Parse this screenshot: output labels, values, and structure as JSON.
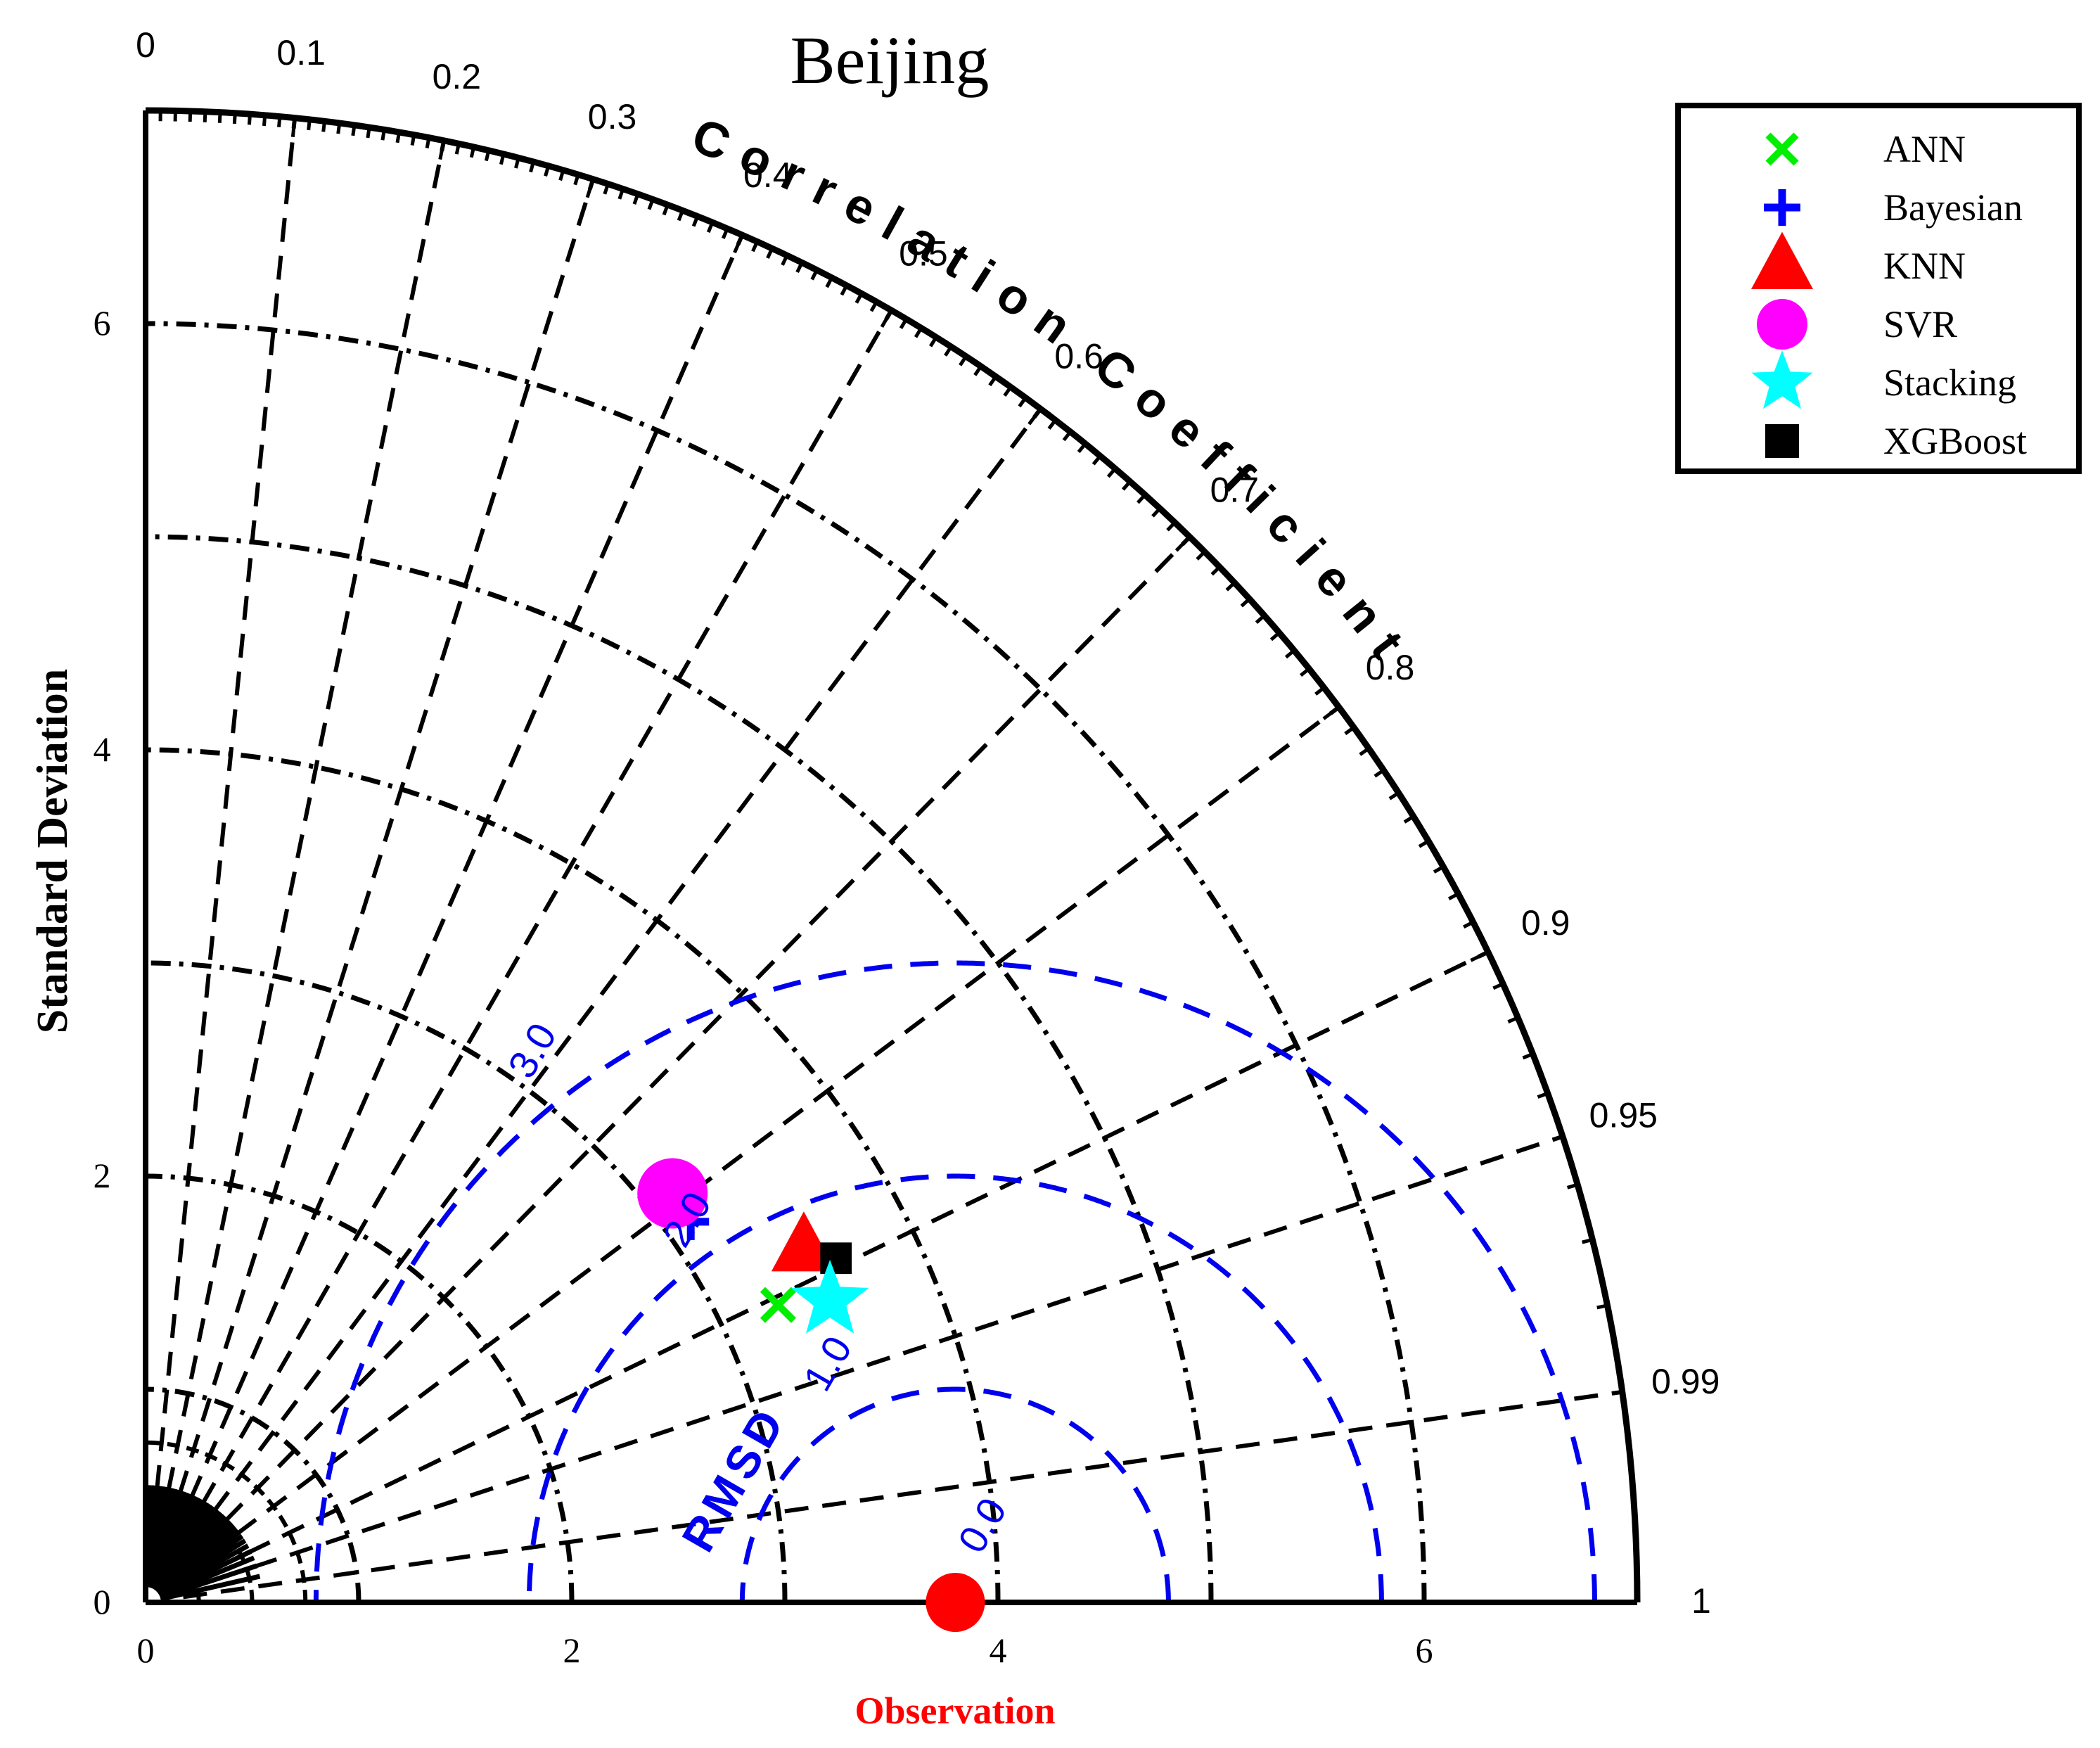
{
  "chart_data": {
    "type": "scatter",
    "subtype": "taylor-diagram",
    "title": "Beijing",
    "xlabel": "Observation",
    "ylabel": "Standard Deviation",
    "arc_label": "Correlation Coefficient",
    "rmsd_label": "RMSD",
    "std_range": [
      0,
      7
    ],
    "std_ticks": [
      "0",
      "2",
      "4",
      "6"
    ],
    "std_tick_values": [
      0,
      2,
      4,
      6
    ],
    "std_arcs": [
      1,
      2,
      3,
      4,
      5,
      6
    ],
    "correlation_ticks": [
      "0",
      "0.1",
      "0.2",
      "0.3",
      "0.4",
      "0.5",
      "0.6",
      "0.7",
      "0.8",
      "0.9",
      "0.95",
      "0.99",
      "1"
    ],
    "correlation_tick_values": [
      0,
      0.1,
      0.2,
      0.3,
      0.4,
      0.5,
      0.6,
      0.7,
      0.8,
      0.9,
      0.95,
      0.99,
      1
    ],
    "rmsd_contours": [
      1,
      2,
      3
    ],
    "rmsd_labels": [
      "0.0",
      "1.0",
      "2.0",
      "3.0"
    ],
    "reference": {
      "std": 3.8,
      "color": "#ff0000"
    },
    "legend_position": "top-right",
    "series": [
      {
        "name": "ANN",
        "std": 3.28,
        "corr": 0.905,
        "marker": "x",
        "color": "#00ee00"
      },
      {
        "name": "Bayesian",
        "std": 3.12,
        "corr": 0.82,
        "marker": "plus",
        "color": "#0000ff"
      },
      {
        "name": "KNN",
        "std": 3.51,
        "corr": 0.88,
        "marker": "triangle",
        "color": "#ff0000"
      },
      {
        "name": "SVR",
        "std": 3.13,
        "corr": 0.79,
        "marker": "circle",
        "color": "#ff00ff"
      },
      {
        "name": "Stacking",
        "std": 3.51,
        "corr": 0.915,
        "marker": "star",
        "color": "#00ffff"
      },
      {
        "name": "XGBoost",
        "std": 3.62,
        "corr": 0.895,
        "marker": "square",
        "color": "#000000"
      }
    ]
  }
}
